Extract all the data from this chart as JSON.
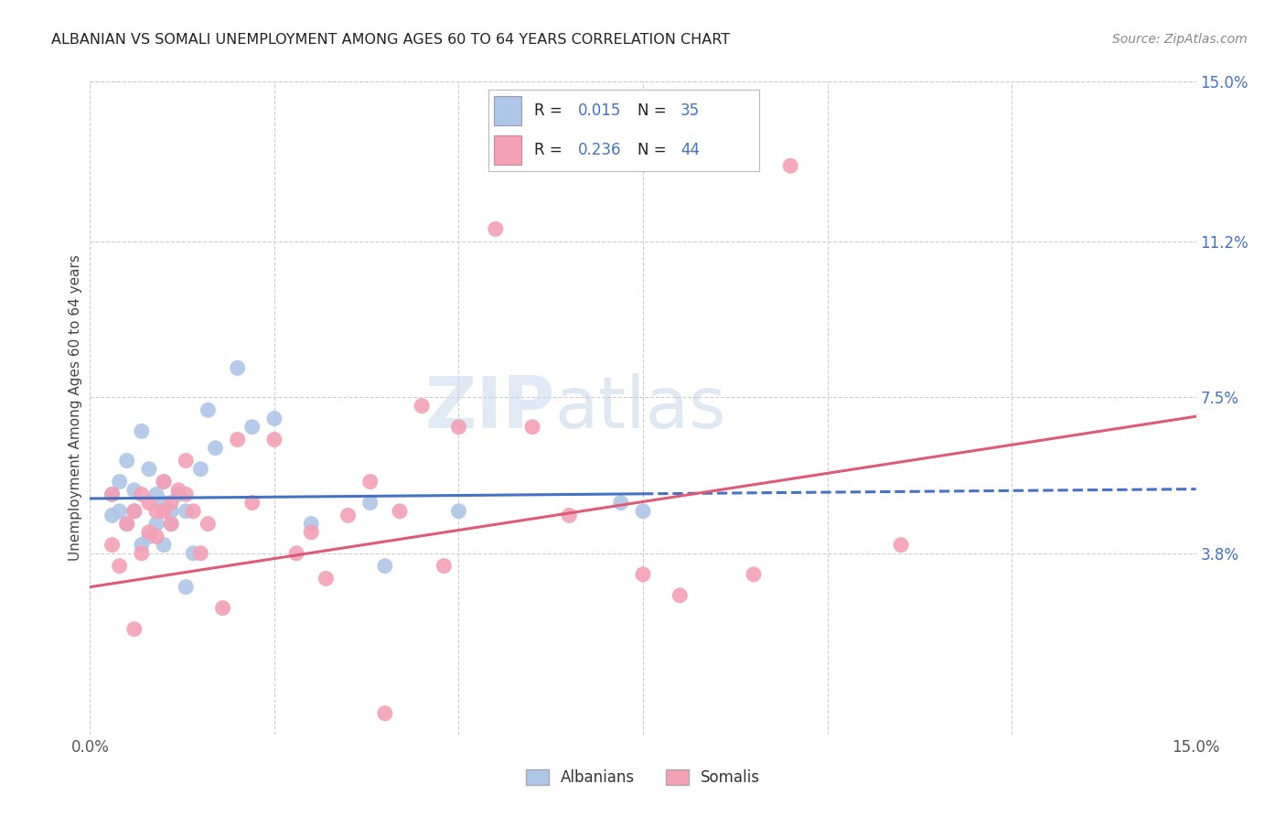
{
  "title": "ALBANIAN VS SOMALI UNEMPLOYMENT AMONG AGES 60 TO 64 YEARS CORRELATION CHART",
  "source": "Source: ZipAtlas.com",
  "ylabel": "Unemployment Among Ages 60 to 64 years",
  "xlim": [
    0.0,
    0.15
  ],
  "ylim": [
    -0.005,
    0.15
  ],
  "ytick_labels_right": [
    "15.0%",
    "11.2%",
    "7.5%",
    "3.8%"
  ],
  "ytick_values_right": [
    0.15,
    0.112,
    0.075,
    0.038
  ],
  "albanian_R": "0.015",
  "albanian_N": "35",
  "somali_R": "0.236",
  "somali_N": "44",
  "albanian_color": "#aec6e8",
  "somali_color": "#f4a0b5",
  "albanian_line_color": "#4472c4",
  "somali_line_color": "#e05a78",
  "tick_color": "#4472c4",
  "label_color": "#333333",
  "background_color": "#ffffff",
  "grid_color": "#cccccc",
  "watermark_color": "#c8d8ec",
  "albanian_x": [
    0.003,
    0.003,
    0.004,
    0.004,
    0.005,
    0.005,
    0.006,
    0.006,
    0.007,
    0.007,
    0.008,
    0.008,
    0.009,
    0.009,
    0.01,
    0.01,
    0.01,
    0.011,
    0.011,
    0.012,
    0.013,
    0.013,
    0.014,
    0.015,
    0.016,
    0.017,
    0.02,
    0.022,
    0.025,
    0.03,
    0.038,
    0.04,
    0.05,
    0.072,
    0.075
  ],
  "albanian_y": [
    0.052,
    0.047,
    0.055,
    0.048,
    0.06,
    0.045,
    0.053,
    0.048,
    0.067,
    0.04,
    0.058,
    0.042,
    0.052,
    0.045,
    0.04,
    0.05,
    0.055,
    0.045,
    0.048,
    0.052,
    0.03,
    0.048,
    0.038,
    0.058,
    0.072,
    0.063,
    0.082,
    0.068,
    0.07,
    0.045,
    0.05,
    0.035,
    0.048,
    0.05,
    0.048
  ],
  "somali_x": [
    0.003,
    0.003,
    0.004,
    0.005,
    0.006,
    0.006,
    0.007,
    0.007,
    0.008,
    0.008,
    0.009,
    0.009,
    0.01,
    0.01,
    0.011,
    0.011,
    0.012,
    0.013,
    0.013,
    0.014,
    0.015,
    0.016,
    0.018,
    0.02,
    0.022,
    0.025,
    0.028,
    0.03,
    0.032,
    0.035,
    0.038,
    0.04,
    0.042,
    0.045,
    0.048,
    0.05,
    0.055,
    0.06,
    0.065,
    0.075,
    0.08,
    0.09,
    0.095,
    0.11
  ],
  "somali_y": [
    0.052,
    0.04,
    0.035,
    0.045,
    0.02,
    0.048,
    0.052,
    0.038,
    0.05,
    0.043,
    0.048,
    0.042,
    0.055,
    0.048,
    0.05,
    0.045,
    0.053,
    0.06,
    0.052,
    0.048,
    0.038,
    0.045,
    0.025,
    0.065,
    0.05,
    0.065,
    0.038,
    0.043,
    0.032,
    0.047,
    0.055,
    0.0,
    0.048,
    0.073,
    0.035,
    0.068,
    0.115,
    0.068,
    0.047,
    0.033,
    0.028,
    0.033,
    0.13,
    0.04
  ]
}
